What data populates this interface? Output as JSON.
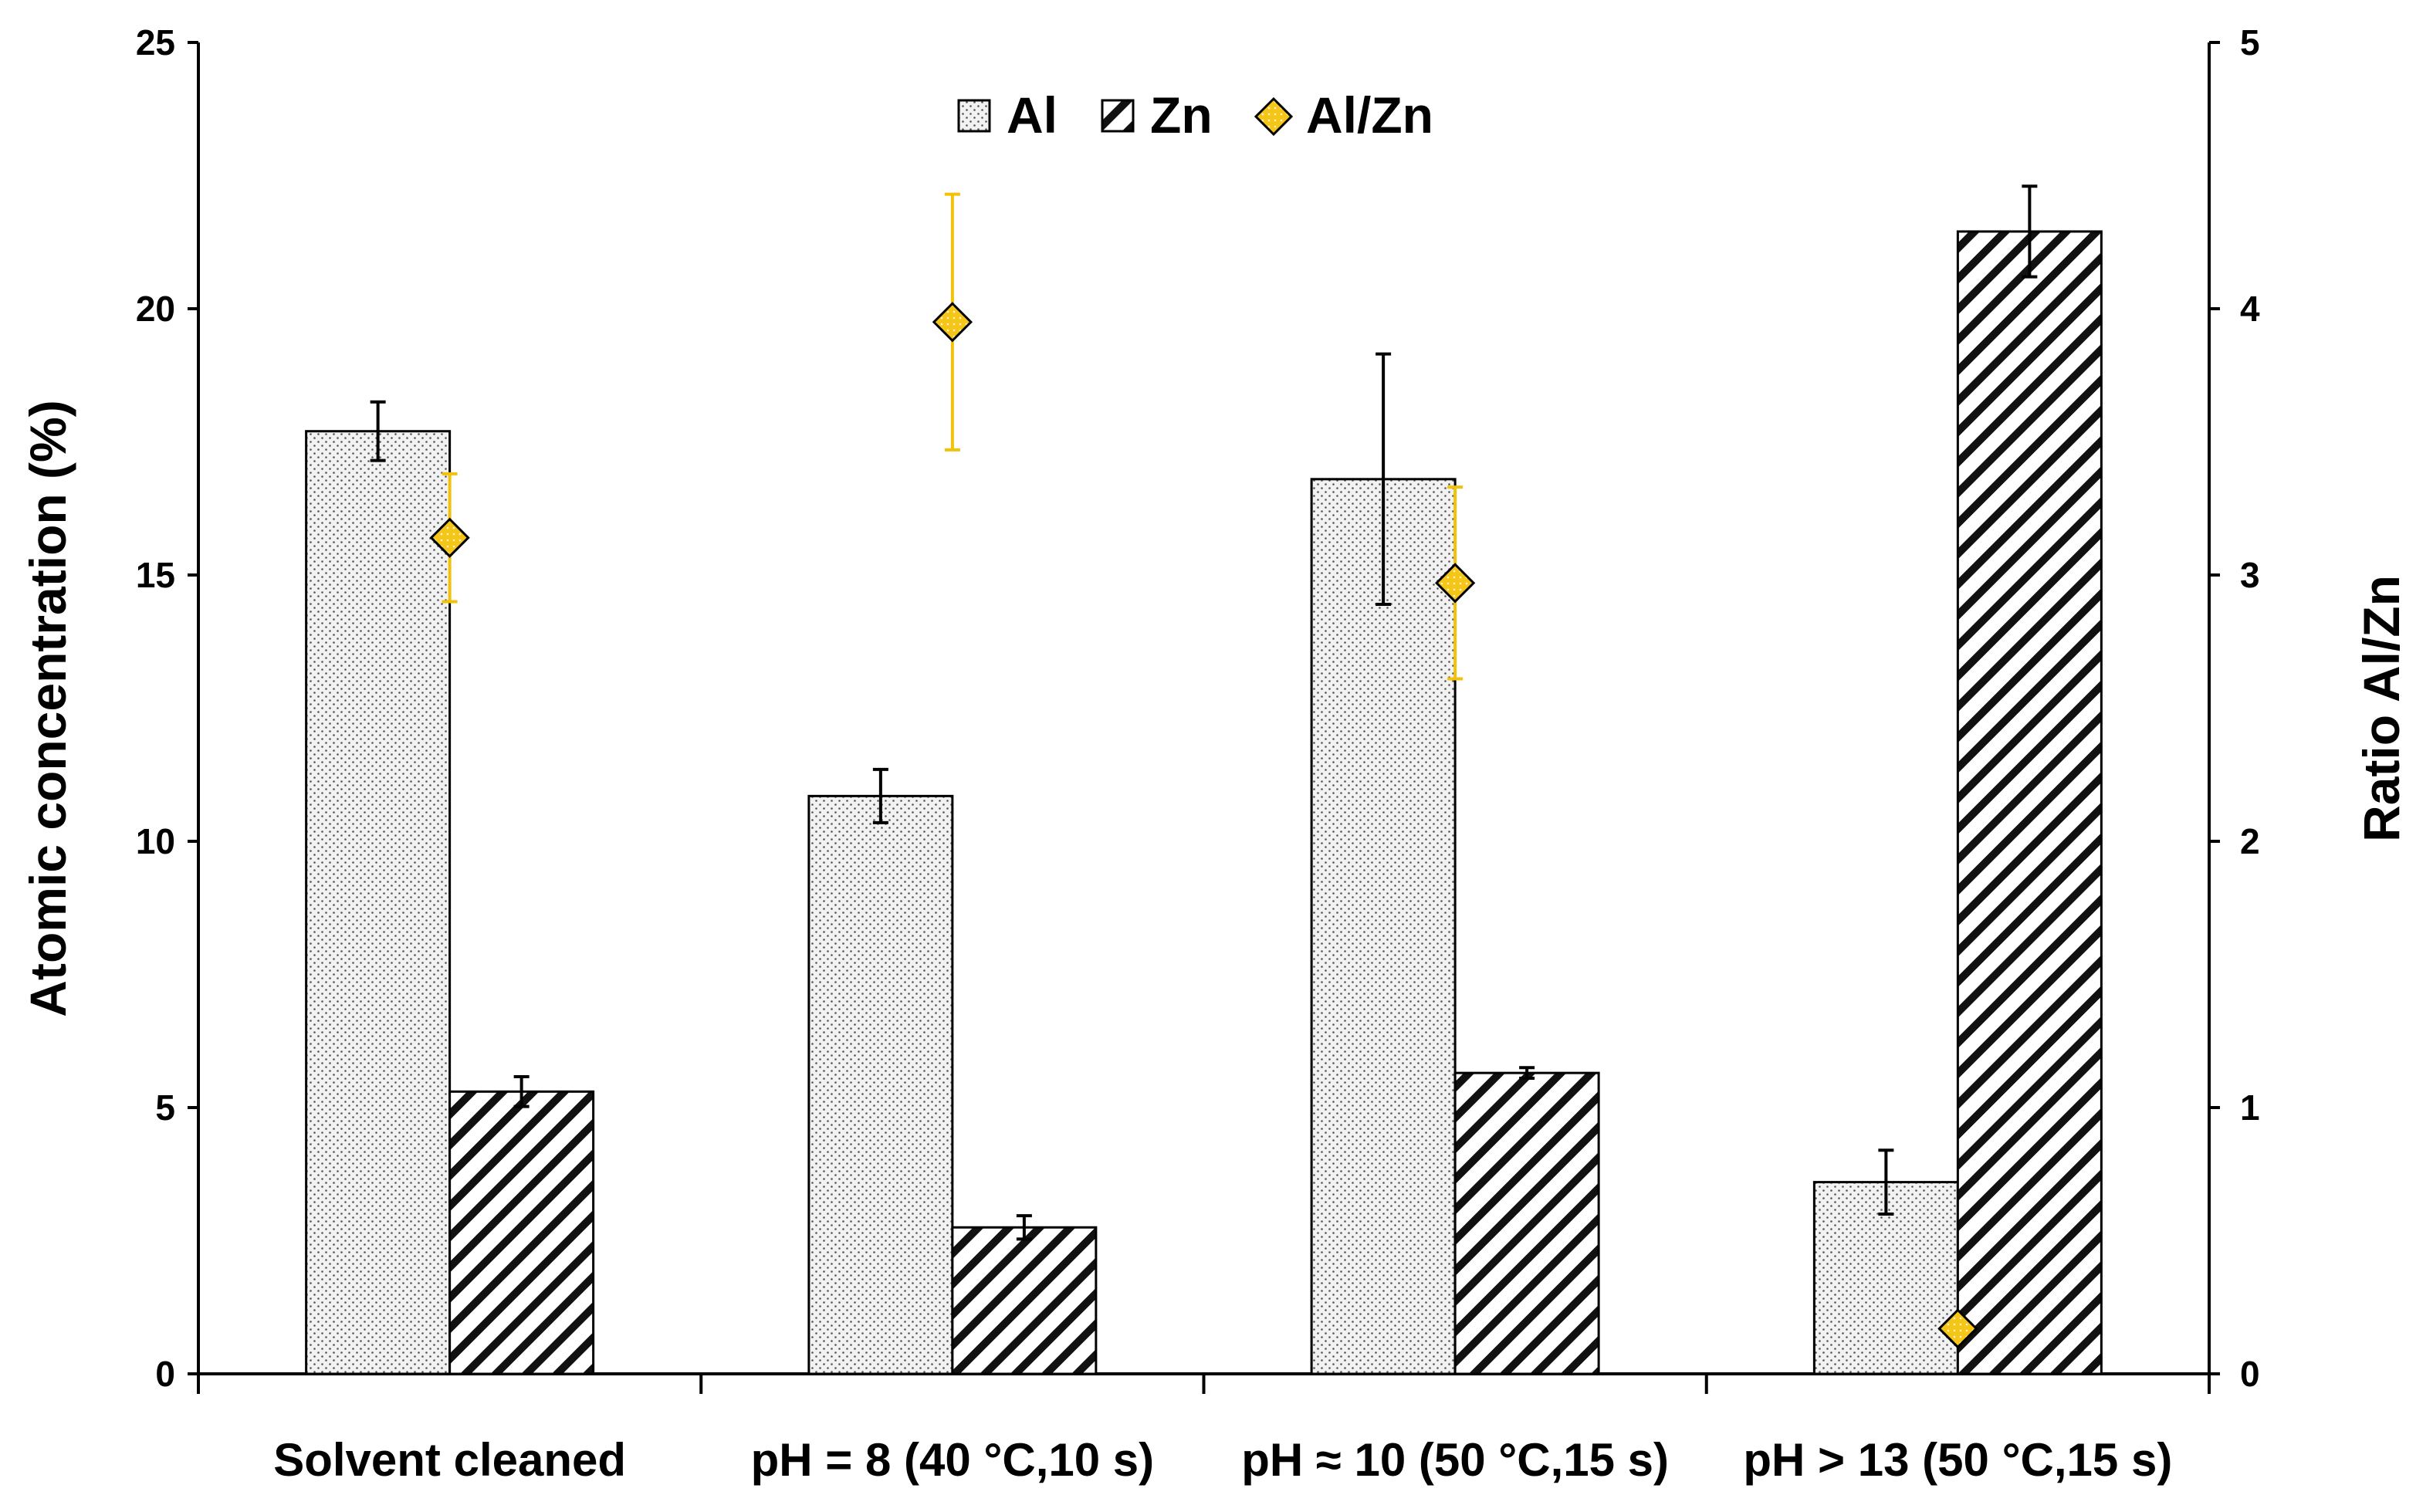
{
  "chart_data": {
    "type": "bar",
    "categories": [
      "Solvent cleaned",
      "pH = 8 (40 °C,10 s)",
      "pH ≈ 10 (50 °C,15 s)",
      "pH > 13 (50 °C,15 s)"
    ],
    "series": [
      {
        "name": "Al",
        "axis": "left",
        "pattern": "dots",
        "values": [
          17.7,
          10.85,
          16.8,
          3.6
        ],
        "errors": [
          0.55,
          0.5,
          2.35,
          0.6
        ]
      },
      {
        "name": "Zn",
        "axis": "left",
        "pattern": "diagonal-hatch",
        "values": [
          5.3,
          2.75,
          5.65,
          21.45
        ],
        "errors": [
          0.28,
          0.22,
          0.1,
          0.85
        ]
      },
      {
        "name": "Al/Zn",
        "axis": "right",
        "type": "scatter",
        "marker": "diamond",
        "color": "#F5C518",
        "error_color": "#F2C20A",
        "values": [
          3.14,
          3.95,
          2.97,
          0.17
        ],
        "errors": [
          0.24,
          0.48,
          0.36,
          0
        ]
      }
    ],
    "ylabel": "Atomic concentration (%)",
    "y2label": "Ratio Al/Zn",
    "ylim": [
      0,
      25
    ],
    "y2lim": [
      0,
      5
    ],
    "yticks": [
      "0",
      "5",
      "10",
      "15",
      "20",
      "25"
    ],
    "y2ticks": [
      "0",
      "1",
      "2",
      "3",
      "4",
      "5"
    ],
    "legend": {
      "position": "top-center",
      "entries": [
        "Al",
        "Zn",
        "Al/Zn"
      ]
    },
    "grid": false
  }
}
